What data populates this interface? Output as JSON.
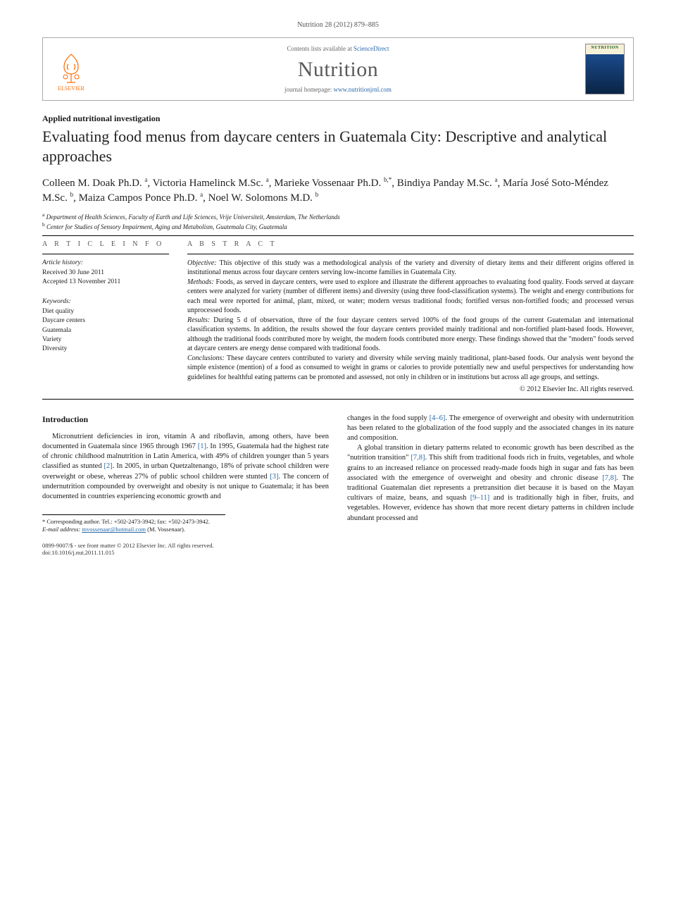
{
  "citation": "Nutrition 28 (2012) 879–885",
  "contents_prefix": "Contents lists available at ",
  "contents_link": "ScienceDirect",
  "journal_name": "Nutrition",
  "homepage_prefix": "journal homepage: ",
  "homepage_link": "www.nutritionjrnl.com",
  "elsevier": "ELSEVIER",
  "cover_label": "NUTRITION",
  "article_type": "Applied nutritional investigation",
  "title": "Evaluating food menus from daycare centers in Guatemala City: Descriptive and analytical approaches",
  "authors_html": "Colleen M. Doak Ph.D. <sup>a</sup>, Victoria Hamelinck M.Sc. <sup>a</sup>, Marieke Vossenaar Ph.D. <sup>b,*</sup>, Bindiya Panday M.Sc. <sup>a</sup>, María José Soto-Méndez M.Sc. <sup>b</sup>, Maiza Campos Ponce Ph.D. <sup>a</sup>, Noel W. Solomons M.D. <sup>b</sup>",
  "affiliations": [
    {
      "key": "a",
      "text": "Department of Health Sciences, Faculty of Earth and Life Sciences, Vrije Universiteit, Amsterdam, The Netherlands"
    },
    {
      "key": "b",
      "text": "Center for Studies of Sensory Impairment, Aging and Metabolism, Guatemala City, Guatemala"
    }
  ],
  "info_label": "A R T I C L E   I N F O",
  "abstract_label": "A B S T R A C T",
  "history": {
    "heading": "Article history:",
    "received": "Received 30 June 2011",
    "accepted": "Accepted 13 November 2011"
  },
  "keywords": {
    "heading": "Keywords:",
    "items": [
      "Diet quality",
      "Daycare centers",
      "Guatemala",
      "Variety",
      "Diversity"
    ]
  },
  "abstract": {
    "objective_label": "Objective:",
    "objective": " This objective of this study was a methodological analysis of the variety and diversity of dietary items and their different origins offered in institutional menus across four daycare centers serving low-income families in Guatemala City.",
    "methods_label": "Methods:",
    "methods": " Foods, as served in daycare centers, were used to explore and illustrate the different approaches to evaluating food quality. Foods served at daycare centers were analyzed for variety (number of different items) and diversity (using three food-classification systems). The weight and energy contributions for each meal were reported for animal, plant, mixed, or water; modern versus traditional foods; fortified versus non-fortified foods; and processed versus unprocessed foods.",
    "results_label": "Results:",
    "results": " During 5 d of observation, three of the four daycare centers served 100% of the food groups of the current Guatemalan and international classification systems. In addition, the results showed the four daycare centers provided mainly traditional and non-fortified plant-based foods. However, although the traditional foods contributed more by weight, the modern foods contributed more energy. These findings showed that the \"modern\" foods served at daycare centers are energy dense compared with traditional foods.",
    "conclusions_label": "Conclusions:",
    "conclusions": " These daycare centers contributed to variety and diversity while serving mainly traditional, plant-based foods. Our analysis went beyond the simple existence (mention) of a food as consumed to weight in grams or calories to provide potentially new and useful perspectives for understanding how guidelines for healthful eating patterns can be promoted and assessed, not only in children or in institutions but across all age groups, and settings.",
    "copyright": "© 2012 Elsevier Inc. All rights reserved."
  },
  "intro_heading": "Introduction",
  "intro_p1": "Micronutrient deficiencies in iron, vitamin A and riboflavin, among others, have been documented in Guatemala since 1965 through 1967 [1]. In 1995, Guatemala had the highest rate of chronic childhood malnutrition in Latin America, with 49% of children younger than 5 years classified as stunted [2]. In 2005, in urban Quetzaltenango, 18% of private school children were overweight or obese, whereas 27% of public school children were stunted [3]. The concern of undernutrition compounded by overweight and obesity is not unique to Guatemala; it has been documented in countries experiencing economic growth and",
  "intro_p1_cont": "changes in the food supply [4–6]. The emergence of overweight and obesity with undernutrition has been related to the globalization of the food supply and the associated changes in its nature and composition.",
  "intro_p2": "A global transition in dietary patterns related to economic growth has been described as the \"nutrition transition\" [7,8]. This shift from traditional foods rich in fruits, vegetables, and whole grains to an increased reliance on processed ready-made foods high in sugar and fats has been associated with the emergence of overweight and obesity and chronic disease [7,8]. The traditional Guatemalan diet represents a pretransition diet because it is based on the Mayan cultivars of maize, beans, and squash [9–11] and is traditionally high in fiber, fruits, and vegetables. However, evidence has shown that more recent dietary patterns in children include abundant processed and",
  "corr": {
    "star": "*",
    "text": "Corresponding author. Tel.: +502-2473-3942; fax: +502-2473-3942.",
    "email_label": "E-mail address:",
    "email": "mvossenaar@hotmail.com",
    "email_name": "(M. Vossenaar)."
  },
  "footer": {
    "left1": "0899-9007/$ - see front matter © 2012 Elsevier Inc. All rights reserved.",
    "left2": "doi:10.1016/j.nut.2011.11.015"
  },
  "colors": {
    "link": "#2a6aa8",
    "text": "#1a1a1a",
    "muted": "#555555",
    "rule": "#000000",
    "elsevier_orange": "#ff6a00"
  }
}
